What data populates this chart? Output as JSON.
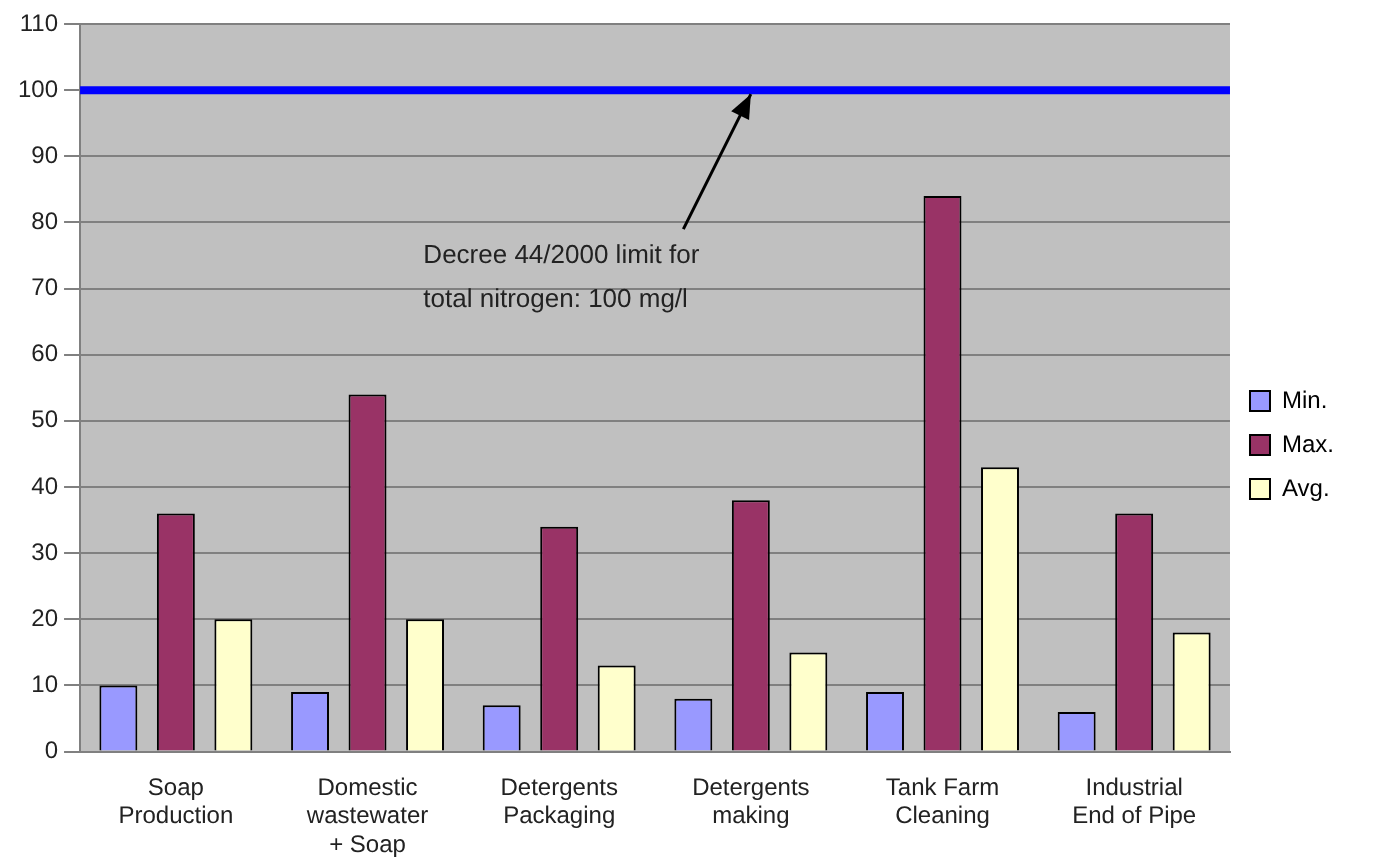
{
  "chart_data": {
    "type": "bar",
    "categories": [
      "Soap Production",
      "Domestic wastewater + Soap",
      "Detergents Packaging",
      "Detergents making",
      "Tank Farm Cleaning",
      "Industrial End of Pipe"
    ],
    "series": [
      {
        "name": "Min.",
        "color": "#9999ff",
        "values": [
          10,
          9,
          7,
          8,
          9,
          6
        ]
      },
      {
        "name": "Max.",
        "color": "#993366",
        "values": [
          36,
          54,
          34,
          38,
          84,
          36
        ]
      },
      {
        "name": "Avg.",
        "color": "#ffffcc",
        "values": [
          20,
          20,
          13,
          15,
          43,
          18
        ]
      }
    ],
    "ylim": [
      0,
      110
    ],
    "yticks": [
      0,
      10,
      20,
      30,
      40,
      50,
      60,
      70,
      80,
      90,
      100,
      110
    ],
    "grid": "y",
    "legend": "right",
    "ref_lines": [
      {
        "axis": "y",
        "value": 100,
        "color": "#0000ff"
      }
    ],
    "annotations": [
      {
        "text": "Decree 44/2000 limit for total nitrogen: 100 mg/l",
        "x": "Detergents making",
        "y": 100
      }
    ]
  }
}
